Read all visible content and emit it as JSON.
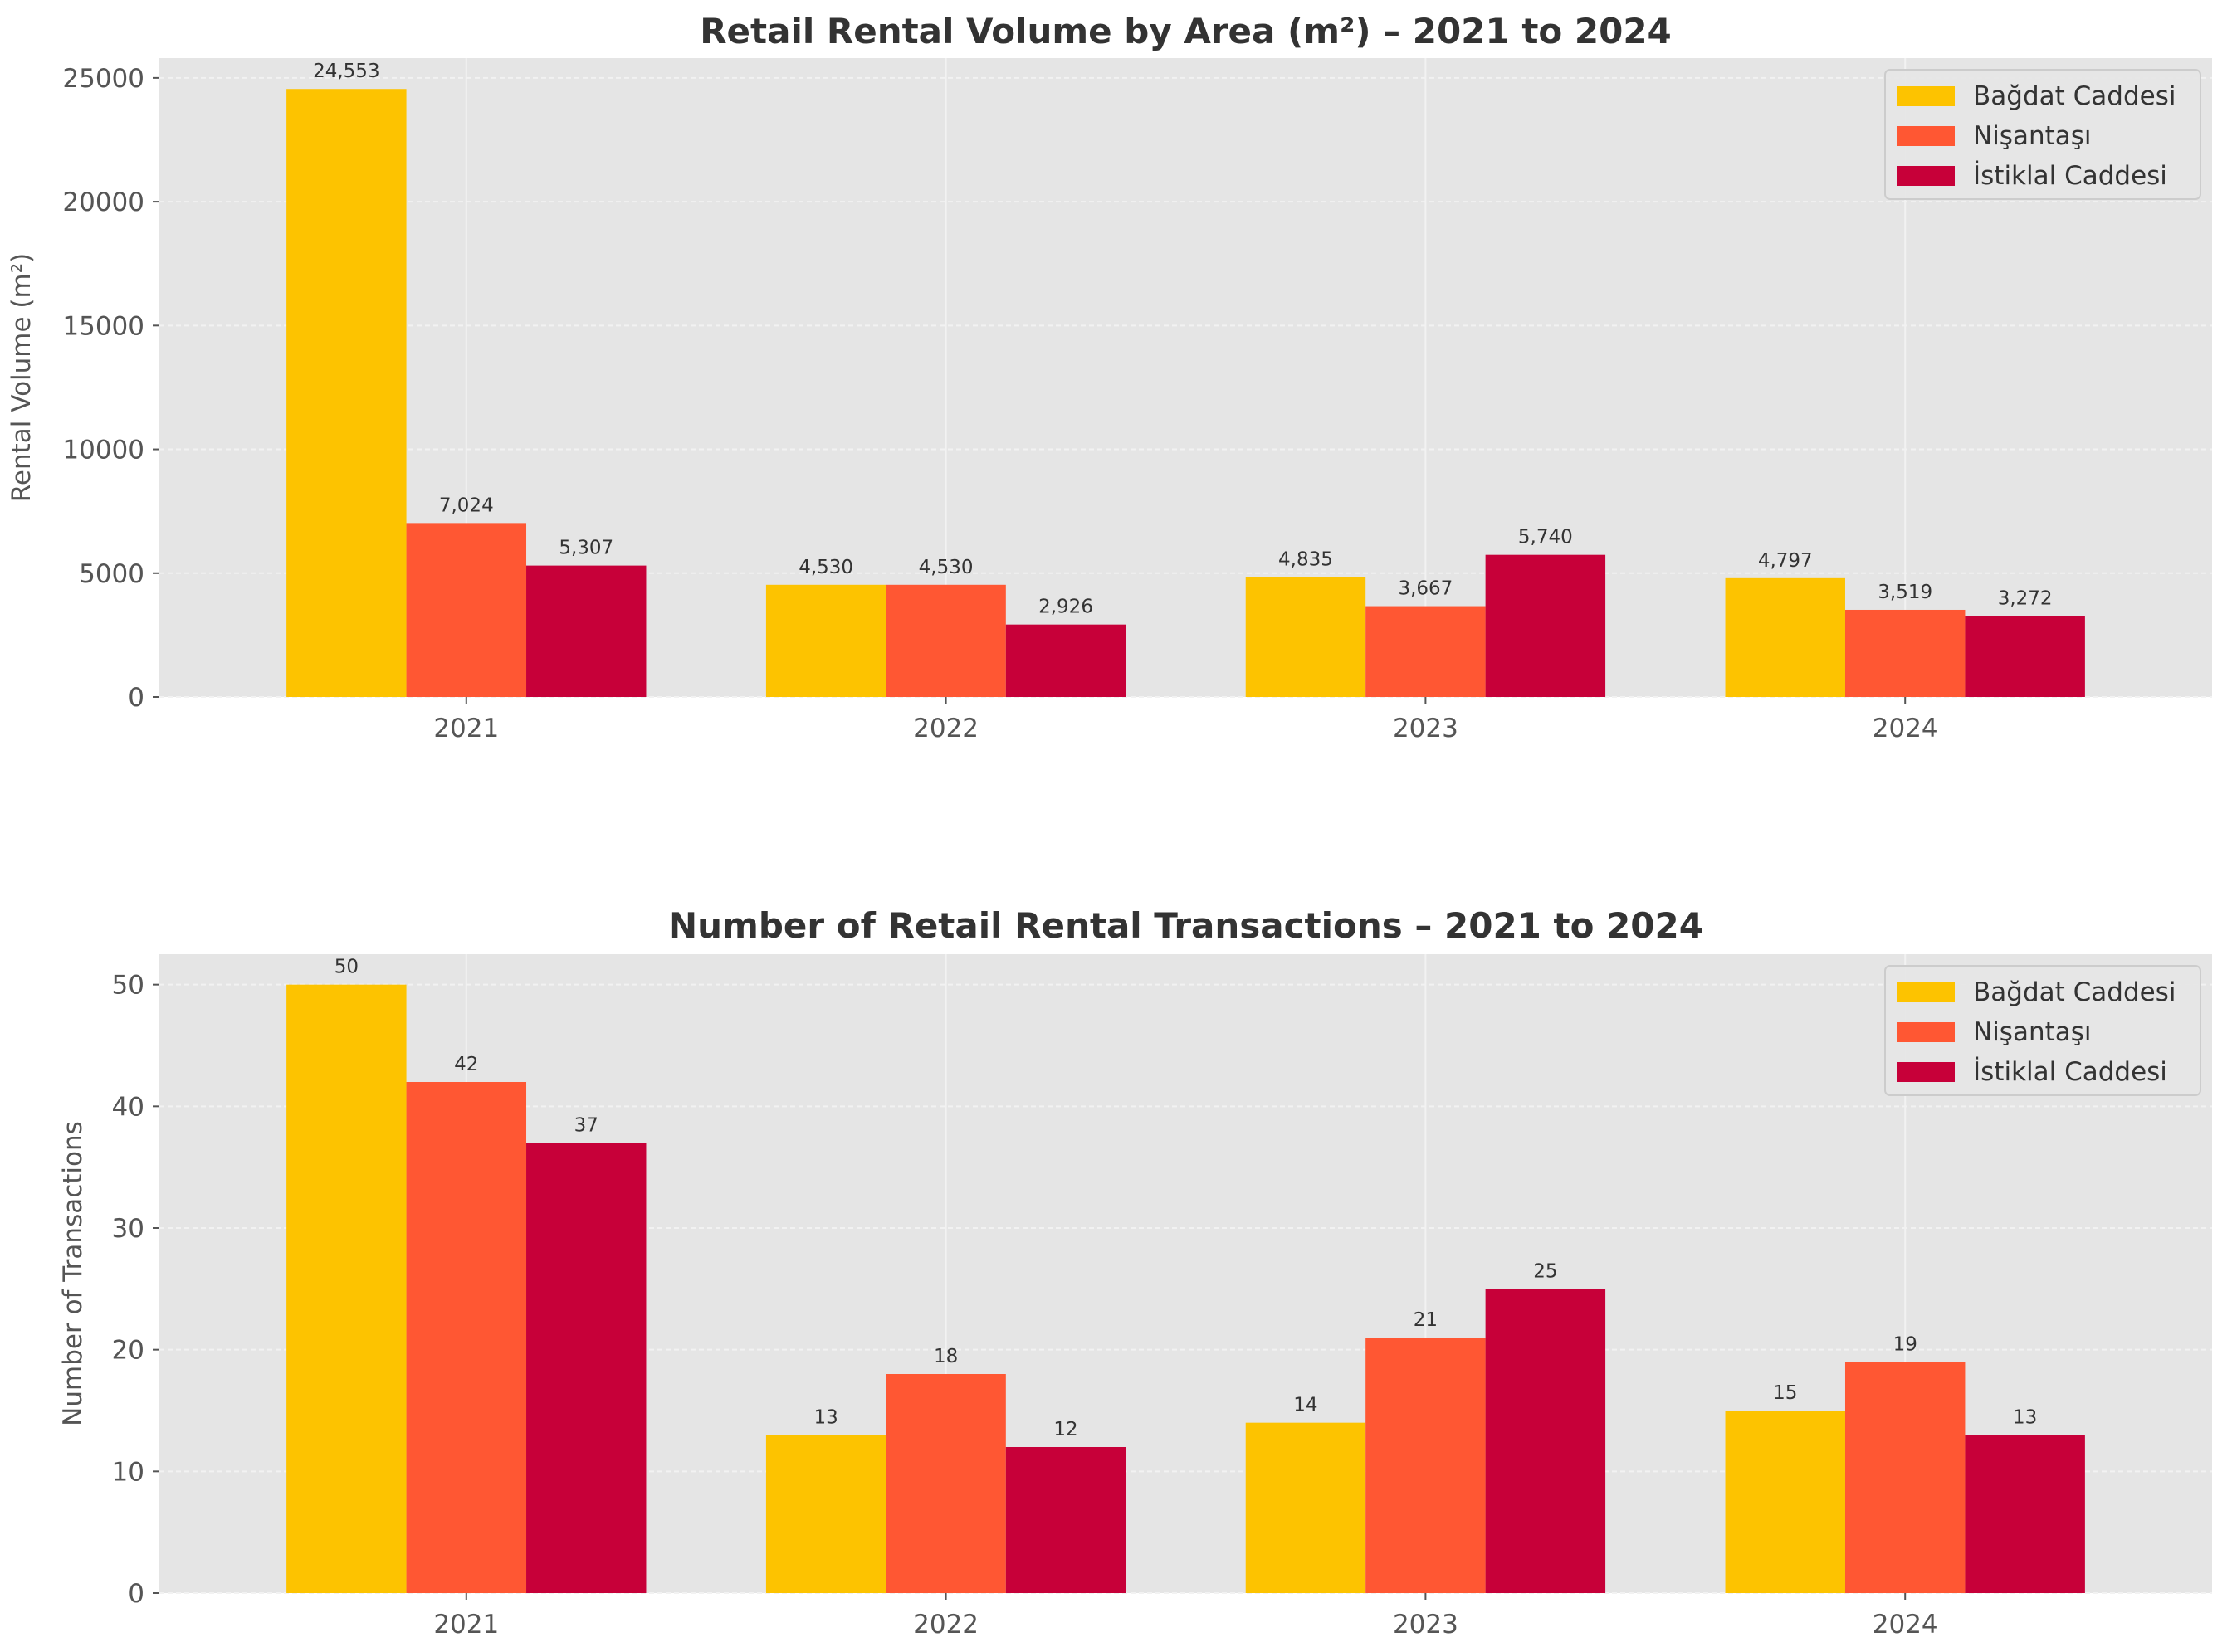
{
  "colors": {
    "plot_background": "#E5E5E5",
    "grid": "#F2F2F2",
    "text": "#333333",
    "series": [
      "#FDC300",
      "#FF5733",
      "#C70039"
    ]
  },
  "chart_data": [
    {
      "type": "bar",
      "title": "Retail Rental Volume by Area (m²) – 2021 to 2024",
      "xlabel": "",
      "ylabel": "Rental Volume (m²)",
      "categories": [
        "2021",
        "2022",
        "2023",
        "2024"
      ],
      "series": [
        {
          "name": "Bağdat Caddesi",
          "values": [
            24553,
            4530,
            4835,
            4797
          ],
          "labels": [
            "24,553",
            "4,530",
            "4,835",
            "4,797"
          ]
        },
        {
          "name": "Nişantaşı",
          "values": [
            7024,
            4530,
            3667,
            3519
          ],
          "labels": [
            "7,024",
            "4,530",
            "3,667",
            "3,519"
          ]
        },
        {
          "name": "İstiklal Caddesi",
          "values": [
            5307,
            2926,
            5740,
            3272
          ],
          "labels": [
            "5,307",
            "2,926",
            "5,740",
            "3,272"
          ]
        }
      ],
      "ylim": [
        0,
        25800
      ],
      "yticks": [
        0,
        5000,
        10000,
        15000,
        20000,
        25000
      ],
      "grid": true,
      "legend": "top-right"
    },
    {
      "type": "bar",
      "title": "Number of Retail Rental Transactions – 2021 to 2024",
      "xlabel": "",
      "ylabel": "Number of Transactions",
      "categories": [
        "2021",
        "2022",
        "2023",
        "2024"
      ],
      "series": [
        {
          "name": "Bağdat Caddesi",
          "values": [
            50,
            13,
            14,
            15
          ],
          "labels": [
            "50",
            "13",
            "14",
            "15"
          ]
        },
        {
          "name": "Nişantaşı",
          "values": [
            42,
            18,
            21,
            19
          ],
          "labels": [
            "42",
            "18",
            "21",
            "19"
          ]
        },
        {
          "name": "İstiklal Caddesi",
          "values": [
            37,
            12,
            25,
            13
          ],
          "labels": [
            "37",
            "12",
            "25",
            "13"
          ]
        }
      ],
      "ylim": [
        0,
        52.5
      ],
      "yticks": [
        0,
        10,
        20,
        30,
        40,
        50
      ],
      "grid": true,
      "legend": "top-right"
    }
  ]
}
